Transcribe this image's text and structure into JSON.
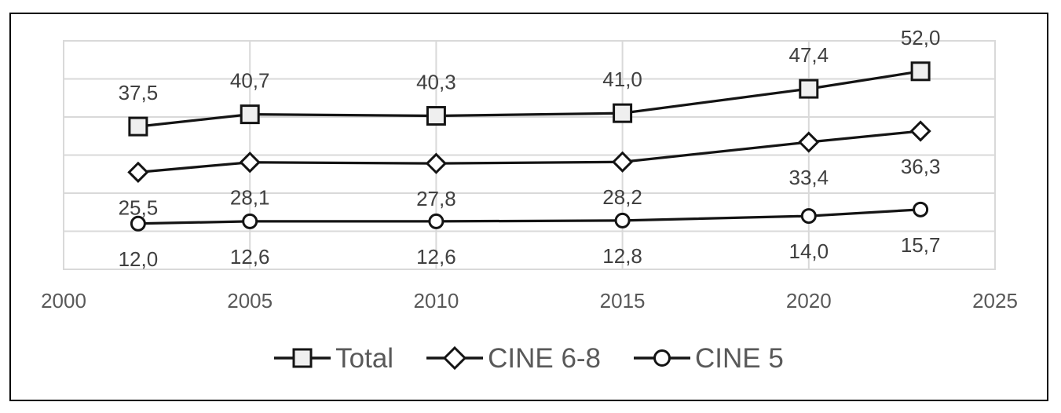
{
  "chart_data": {
    "type": "line",
    "title": "",
    "xlabel": "",
    "ylabel": "",
    "x": [
      2002,
      2005,
      2010,
      2015,
      2020,
      2023
    ],
    "series": [
      {
        "name": "Total",
        "marker": "square",
        "values": [
          37.5,
          40.7,
          40.3,
          41.0,
          47.4,
          52.0
        ],
        "labels": [
          "37,5",
          "40,7",
          "40,3",
          "41,0",
          "47,4",
          "52,0"
        ],
        "label_position": "above"
      },
      {
        "name": "CINE 6-8",
        "marker": "diamond",
        "values": [
          25.5,
          28.1,
          27.8,
          28.2,
          33.4,
          36.3
        ],
        "labels": [
          "25,5",
          "28,1",
          "27,8",
          "28,2",
          "33,4",
          "36,3"
        ],
        "label_position": "below"
      },
      {
        "name": "CINE 5",
        "marker": "circle",
        "values": [
          12.0,
          12.6,
          12.6,
          12.8,
          14.0,
          15.7
        ],
        "labels": [
          "12,0",
          "12,6",
          "12,6",
          "12,8",
          "14,0",
          "15,7"
        ],
        "label_position": "below"
      }
    ],
    "xlim": [
      2000,
      2025
    ],
    "ylim": [
      0,
      60
    ],
    "x_ticks": [
      2000,
      2005,
      2010,
      2015,
      2020,
      2025
    ],
    "x_tick_labels": [
      "2000",
      "2005",
      "2010",
      "2015",
      "2020",
      "2025"
    ],
    "y_grid_step": 10,
    "y_axis_labels_shown": false,
    "grid": true,
    "legend_position": "bottom"
  },
  "colors": {
    "line": "#141414",
    "gridline": "#d9d9d9",
    "axis_text": "#595959",
    "data_label_text": "#404040",
    "legend_text": "#595959",
    "square_marker_fill": "#efefef",
    "light_marker_fill": "#ffffff",
    "frame_border": "#000000",
    "background": "#ffffff"
  }
}
